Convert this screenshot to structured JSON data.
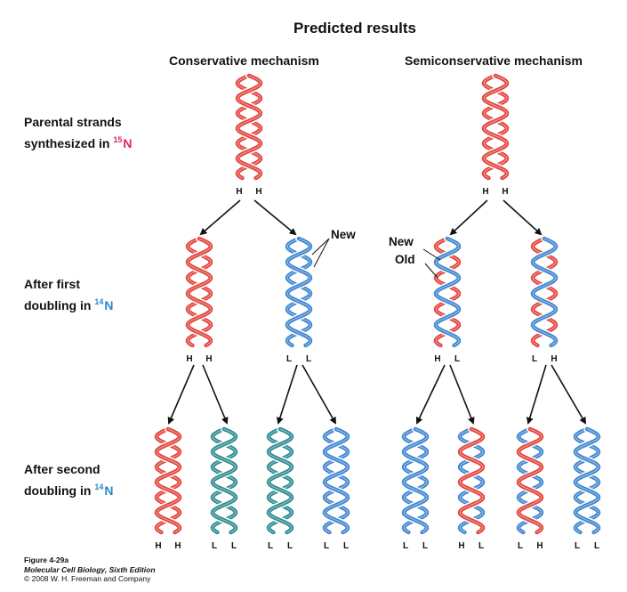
{
  "title": "Predicted results",
  "columns": {
    "conservative": "Conservative mechanism",
    "semiconservative": "Semiconservative mechanism"
  },
  "rows": {
    "parental": {
      "line1": "Parental strands",
      "line2_prefix": "synthesized in ",
      "isotope_mass": "15",
      "isotope_symbol": "N"
    },
    "first": {
      "line1": "After first",
      "line2_prefix": "doubling in ",
      "isotope_mass": "14",
      "isotope_symbol": "N"
    },
    "second": {
      "line1": "After second",
      "line2_prefix": "doubling in ",
      "isotope_mass": "14",
      "isotope_symbol": "N"
    }
  },
  "annotations": {
    "new": "New",
    "old": "Old"
  },
  "colors": {
    "heavy": "#e2423a",
    "light": "#3d85d0",
    "teal": "#2b8a8f",
    "isotope15": "#e0206e",
    "isotope14": "#2a86c9"
  },
  "helices": [
    {
      "id": "cons-parent",
      "strands": [
        "heavy",
        "heavy"
      ],
      "labels": [
        "H",
        "H"
      ]
    },
    {
      "id": "semi-parent",
      "strands": [
        "heavy",
        "heavy"
      ],
      "labels": [
        "H",
        "H"
      ]
    },
    {
      "id": "cons-g1-a",
      "strands": [
        "heavy",
        "heavy"
      ],
      "labels": [
        "H",
        "H"
      ]
    },
    {
      "id": "cons-g1-b",
      "strands": [
        "light",
        "light"
      ],
      "labels": [
        "L",
        "L"
      ]
    },
    {
      "id": "semi-g1-a",
      "strands": [
        "light",
        "heavy"
      ],
      "labels": [
        "H",
        "L"
      ]
    },
    {
      "id": "semi-g1-b",
      "strands": [
        "light",
        "heavy"
      ],
      "labels": [
        "L",
        "H"
      ]
    },
    {
      "id": "cons-g2-1",
      "strands": [
        "heavy",
        "heavy"
      ],
      "labels": [
        "H",
        "H"
      ]
    },
    {
      "id": "cons-g2-2",
      "strands": [
        "teal",
        "teal"
      ],
      "labels": [
        "L",
        "L"
      ]
    },
    {
      "id": "cons-g2-3",
      "strands": [
        "teal",
        "teal"
      ],
      "labels": [
        "L",
        "L"
      ]
    },
    {
      "id": "cons-g2-4",
      "strands": [
        "light",
        "light"
      ],
      "labels": [
        "L",
        "L"
      ]
    },
    {
      "id": "semi-g2-1",
      "strands": [
        "light",
        "light"
      ],
      "labels": [
        "L",
        "L"
      ]
    },
    {
      "id": "semi-g2-2",
      "strands": [
        "heavy",
        "light"
      ],
      "labels": [
        "H",
        "L"
      ]
    },
    {
      "id": "semi-g2-3",
      "strands": [
        "heavy",
        "light"
      ],
      "labels": [
        "L",
        "H"
      ]
    },
    {
      "id": "semi-g2-4",
      "strands": [
        "light",
        "light"
      ],
      "labels": [
        "L",
        "L"
      ]
    }
  ],
  "caption": {
    "figure": "Figure 4-29a",
    "book": "Molecular Cell Biology, Sixth Edition",
    "copyright": "© 2008 W. H. Freeman and Company"
  }
}
